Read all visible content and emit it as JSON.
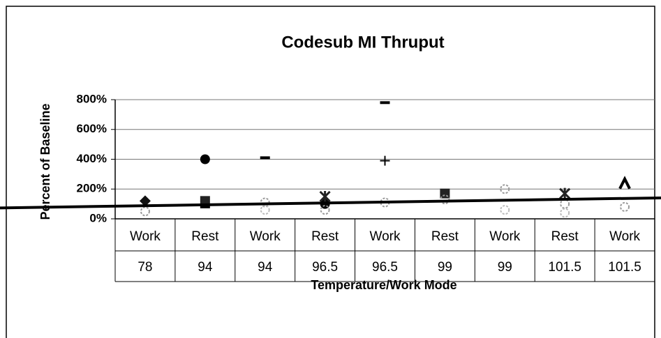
{
  "chart_data": {
    "type": "scatter",
    "title": "Codesub MI Thruput",
    "y_label": "Percent of Baseline",
    "x_label": "Temperature/Work Mode",
    "categories": [
      "Work",
      "Rest",
      "Work",
      "Rest",
      "Work",
      "Rest",
      "Work",
      "Rest",
      "Work"
    ],
    "categories_level2": [
      "78",
      "94",
      "94",
      "96.5",
      "96.5",
      "99",
      "99",
      "101.5",
      "101.5"
    ],
    "ylim": [
      0,
      800
    ],
    "yticks": [
      {
        "value": 0,
        "label": "0%"
      },
      {
        "value": 200,
        "label": "200%"
      },
      {
        "value": 400,
        "label": "400%"
      },
      {
        "value": 600,
        "label": "600%"
      },
      {
        "value": 800,
        "label": "800%"
      }
    ],
    "grid": true,
    "series": [
      {
        "marker": "circle",
        "color": "#000000",
        "values": [
          null,
          400,
          null,
          100,
          null,
          null,
          null,
          null,
          null
        ]
      },
      {
        "marker": "dash",
        "color": "#000000",
        "values": [
          null,
          80,
          410,
          null,
          780,
          null,
          null,
          null,
          null
        ]
      },
      {
        "marker": "plus",
        "color": "#000000",
        "values": [
          null,
          null,
          null,
          null,
          390,
          null,
          null,
          null,
          null
        ]
      },
      {
        "marker": "square",
        "color": "#222222",
        "values": [
          null,
          120,
          null,
          null,
          null,
          170,
          null,
          null,
          null
        ]
      },
      {
        "marker": "diamond",
        "color": "#111111",
        "values": [
          120,
          null,
          null,
          null,
          null,
          null,
          null,
          null,
          null
        ]
      },
      {
        "marker": "star",
        "color": "#222222",
        "values": [
          null,
          null,
          null,
          150,
          null,
          null,
          null,
          170,
          null
        ]
      },
      {
        "marker": "caret",
        "color": "#000000",
        "values": [
          null,
          null,
          null,
          null,
          null,
          null,
          null,
          null,
          240
        ]
      },
      {
        "marker": "ring",
        "color": "#999999",
        "values": [
          50,
          null,
          110,
          60,
          110,
          130,
          200,
          100,
          80
        ]
      },
      {
        "marker": "ring",
        "color": "#bbbbbb",
        "values": [
          null,
          null,
          60,
          null,
          null,
          null,
          60,
          40,
          null
        ]
      }
    ],
    "reference_line": {
      "color": "#000000",
      "values": [
        85,
        140
      ]
    }
  }
}
